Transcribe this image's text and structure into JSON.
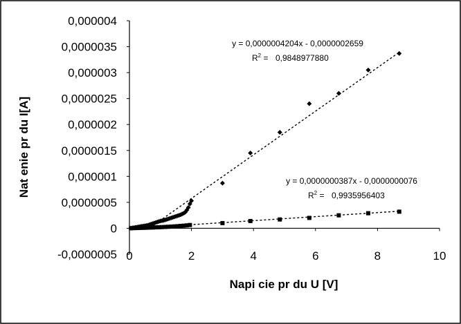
{
  "chart_data": {
    "type": "scatter",
    "xlabel": "Napi  cie pr  du U [V]",
    "ylabel": "Nat    enie pr  du I[A]",
    "xlim": [
      0,
      10
    ],
    "ylim": [
      -5e-07,
      4e-06
    ],
    "x_ticks": [
      "0",
      "2",
      "4",
      "6",
      "8",
      "10"
    ],
    "y_ticks": [
      "-0,0000005",
      "0",
      "0,0000005",
      "0,000001",
      "0,0000015",
      "0,000002",
      "0,0000025",
      "0,000003",
      "0,0000035",
      "0,000004"
    ],
    "grid": false,
    "series": [
      {
        "marker": "diamond",
        "x": [
          0.05,
          0.1,
          0.15,
          0.2,
          0.25,
          0.3,
          0.35,
          0.4,
          0.45,
          0.5,
          0.55,
          0.6,
          0.65,
          0.7,
          0.75,
          0.8,
          0.85,
          0.9,
          0.95,
          1.0,
          1.05,
          1.1,
          1.15,
          1.2,
          1.25,
          1.3,
          1.35,
          1.4,
          1.45,
          1.5,
          1.55,
          1.6,
          1.65,
          1.7,
          1.75,
          1.8,
          1.85,
          1.9,
          1.95,
          2.0,
          3.0,
          3.9,
          4.85,
          5.8,
          6.75,
          7.7,
          8.7
        ],
        "y": [
          5e-09,
          1e-08,
          1.5e-08,
          2e-08,
          2.5e-08,
          3e-08,
          3.5e-08,
          4e-08,
          4.5e-08,
          5e-08,
          5.5e-08,
          6e-08,
          7e-08,
          8e-08,
          9e-08,
          1e-07,
          1.1e-07,
          1.2e-07,
          1.3e-07,
          1.4e-07,
          1.45e-07,
          1.5e-07,
          1.6e-07,
          1.7e-07,
          1.8e-07,
          1.9e-07,
          2e-07,
          2.1e-07,
          2.2e-07,
          2.3e-07,
          2.4e-07,
          2.5e-07,
          2.6e-07,
          2.75e-07,
          2.9e-07,
          3.1e-07,
          3.5e-07,
          4e-07,
          4.7e-07,
          5.3e-07,
          8.7e-07,
          1.45e-06,
          1.85e-06,
          2.4e-06,
          2.6e-06,
          3.05e-06,
          3.37e-06
        ],
        "trendline": {
          "slope": 4.204e-07,
          "intercept": -2.659e-07,
          "x_range": [
            0,
            8.7
          ]
        },
        "equation": "y = 0,0000004204x - 0,0000002659",
        "r_squared": "0,9848977880"
      },
      {
        "marker": "square",
        "x": [
          0.05,
          0.15,
          0.25,
          0.35,
          0.45,
          0.55,
          0.65,
          0.75,
          0.85,
          0.95,
          1.05,
          1.15,
          1.25,
          1.35,
          1.45,
          1.55,
          1.65,
          1.75,
          1.85,
          1.95,
          3.0,
          3.9,
          4.85,
          5.8,
          6.75,
          7.7,
          8.7
        ],
        "y": [
          1e-09,
          3e-09,
          5e-09,
          7e-09,
          9e-09,
          1.1e-08,
          1.3e-08,
          1.5e-08,
          1.8e-08,
          2e-08,
          2.3e-08,
          2.6e-08,
          2.9e-08,
          3.2e-08,
          3.6e-08,
          4e-08,
          4.5e-08,
          5e-08,
          5.6e-08,
          6.3e-08,
          1e-07,
          1.4e-07,
          1.7e-07,
          2e-07,
          2.5e-07,
          2.9e-07,
          3.2e-07
        ],
        "trendline": {
          "slope": 3.87e-08,
          "intercept": -7.6e-09,
          "x_range": [
            0,
            8.7
          ]
        },
        "equation": "y = 0,0000000387x - 0,0000000076",
        "r_squared": "0,9935956403"
      }
    ]
  }
}
